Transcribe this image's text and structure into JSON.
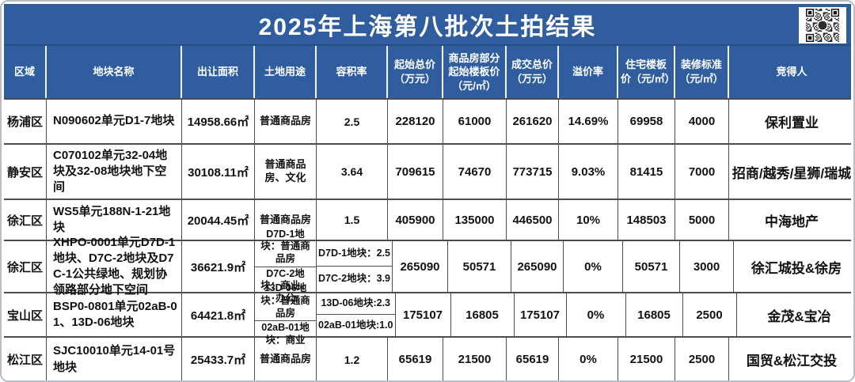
{
  "title": "2025年上海第八批次土拍结果",
  "colors": {
    "header_blue": "#305d9e",
    "title_text": "#ffffff",
    "body_text": "#121212",
    "grid_line": "#4d4d4d"
  },
  "icons": {
    "qr_code": "qr-code"
  },
  "chart_data": {
    "type": "table",
    "title": "2025年上海第八批次土拍结果",
    "columns": [
      "区域",
      "地块名称",
      "出让面积",
      "土地用途",
      "容积率",
      "起始总价（万元）",
      "商品房部分起始楼板价（元/㎡）",
      "成交总价（万元）",
      "溢价率",
      "住宅楼板价（元/㎡）",
      "装修标准（元/㎡）",
      "竞得人"
    ],
    "rows": [
      {
        "region": "杨浦区",
        "name": "N090602单元D1-7地块",
        "area": "14958.66㎡",
        "land_use": "普通商品房",
        "far": "2.5",
        "start_total": "228120",
        "start_floor": "61000",
        "deal_total": "261620",
        "premium": "14.69%",
        "res_floor": "69958",
        "decoration": "4000",
        "winner": "保利置业"
      },
      {
        "region": "静安区",
        "name": "C070102单元32-04地块及32-08地块地下空间",
        "area": "30108.11㎡",
        "land_use": "普通商品房、文化",
        "far": "3.64",
        "start_total": "709615",
        "start_floor": "74670",
        "deal_total": "773715",
        "premium": "9.03%",
        "res_floor": "81415",
        "decoration": "7000",
        "winner": "招商/越秀/星狮/瑞城"
      },
      {
        "region": "徐汇区",
        "name": "WS5单元188N-1-21地块",
        "area": "20044.45㎡",
        "land_use": "普通商品房",
        "far": "1.5",
        "start_total": "405900",
        "start_floor": "135000",
        "deal_total": "446500",
        "premium": "10%",
        "res_floor": "148503",
        "decoration": "5000",
        "winner": "中海地产"
      },
      {
        "region": "徐汇区",
        "name": "XHPO-0001单元D7D-1地块、D7C-2地块及D7C-1公共绿地、规划协领路部分地下空间",
        "area": "36621.9㎡",
        "land_use": [
          "D7D-1地块：普通商品房",
          "D7C-2地块：商业、办公"
        ],
        "far": [
          "D7D-1地块：2.5",
          "D7C-2地块：3.9"
        ],
        "start_total": "265090",
        "start_floor": "50571",
        "deal_total": "265090",
        "premium": "0%",
        "res_floor": "50571",
        "decoration": "3000",
        "winner": "徐汇城投&徐房"
      },
      {
        "region": "宝山区",
        "name": "BSP0-0801单元02aB-01、13D-06地块",
        "area": "64421.8㎡",
        "land_use": [
          "13D-06地块：普通商品房",
          "02aB-01地块：商业"
        ],
        "far": [
          "13D-06地块:2.3",
          "02aB-01地块:1.0"
        ],
        "start_total": "175107",
        "start_floor": "16805",
        "deal_total": "175107",
        "premium": "0%",
        "res_floor": "16805",
        "decoration": "2500",
        "winner": "金茂&宝冶"
      },
      {
        "region": "松江区",
        "name": "SJC10010单元14-01号地块",
        "area": "25433.7㎡",
        "land_use": "普通商品房",
        "far": "1.2",
        "start_total": "65619",
        "start_floor": "21500",
        "deal_total": "65619",
        "premium": "0%",
        "res_floor": "21500",
        "decoration": "2500",
        "winner": "国贸&松江交投"
      }
    ]
  }
}
